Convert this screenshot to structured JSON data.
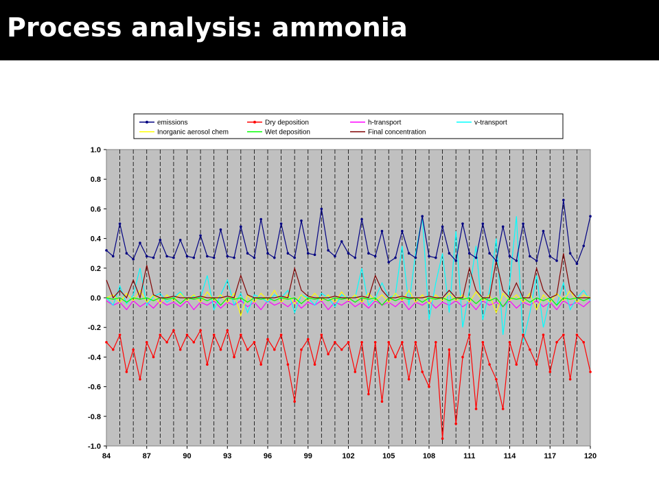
{
  "slide": {
    "title": "Process analysis: ammonia"
  },
  "chart_data": {
    "type": "line",
    "title": "",
    "xlabel": "",
    "ylabel": "",
    "xlim": [
      84,
      120
    ],
    "ylim": [
      -1.0,
      1.0
    ],
    "x_ticks": [
      "84",
      "87",
      "90",
      "93",
      "96",
      "99",
      "102",
      "105",
      "108",
      "111",
      "114",
      "117",
      "120"
    ],
    "y_ticks": [
      "1.0",
      "0.8",
      "0.6",
      "0.4",
      "0.2",
      "0.0",
      "-0.2",
      "-0.4",
      "-0.6",
      "-0.8",
      "-1.0"
    ],
    "vertical_gridlines_every": 1,
    "plot_background": "#c0c0c0",
    "legend_position": "top",
    "x": [
      84,
      84.5,
      85,
      85.5,
      86,
      86.5,
      87,
      87.5,
      88,
      88.5,
      89,
      89.5,
      90,
      90.5,
      91,
      91.5,
      92,
      92.5,
      93,
      93.5,
      94,
      94.5,
      95,
      95.5,
      96,
      96.5,
      97,
      97.5,
      98,
      98.5,
      99,
      99.5,
      100,
      100.5,
      101,
      101.5,
      102,
      102.5,
      103,
      103.5,
      104,
      104.5,
      105,
      105.5,
      106,
      106.5,
      107,
      107.5,
      108,
      108.5,
      109,
      109.5,
      110,
      110.5,
      111,
      111.5,
      112,
      112.5,
      113,
      113.5,
      114,
      114.5,
      115,
      115.5,
      116,
      116.5,
      117,
      117.5,
      118,
      118.5,
      119,
      119.5,
      120
    ],
    "series": [
      {
        "name": "emissions",
        "color": "#000080",
        "marker": true,
        "values": [
          0.32,
          0.28,
          0.5,
          0.3,
          0.26,
          0.37,
          0.28,
          0.27,
          0.39,
          0.28,
          0.27,
          0.39,
          0.28,
          0.27,
          0.42,
          0.28,
          0.27,
          0.46,
          0.28,
          0.27,
          0.48,
          0.3,
          0.27,
          0.53,
          0.3,
          0.27,
          0.5,
          0.3,
          0.27,
          0.52,
          0.3,
          0.29,
          0.6,
          0.32,
          0.28,
          0.38,
          0.3,
          0.27,
          0.53,
          0.3,
          0.28,
          0.45,
          0.24,
          0.27,
          0.45,
          0.3,
          0.27,
          0.55,
          0.28,
          0.27,
          0.48,
          0.3,
          0.25,
          0.5,
          0.3,
          0.27,
          0.5,
          0.3,
          0.25,
          0.48,
          0.28,
          0.25,
          0.5,
          0.28,
          0.25,
          0.45,
          0.28,
          0.25,
          0.66,
          0.3,
          0.23,
          0.35,
          0.55
        ]
      },
      {
        "name": "Dry deposition",
        "color": "#ff0000",
        "marker": true,
        "values": [
          -0.3,
          -0.35,
          -0.25,
          -0.5,
          -0.35,
          -0.55,
          -0.3,
          -0.4,
          -0.25,
          -0.3,
          -0.22,
          -0.35,
          -0.25,
          -0.3,
          -0.22,
          -0.45,
          -0.25,
          -0.35,
          -0.22,
          -0.4,
          -0.25,
          -0.35,
          -0.3,
          -0.45,
          -0.28,
          -0.35,
          -0.25,
          -0.45,
          -0.7,
          -0.35,
          -0.28,
          -0.45,
          -0.25,
          -0.38,
          -0.3,
          -0.35,
          -0.3,
          -0.5,
          -0.3,
          -0.65,
          -0.3,
          -0.7,
          -0.3,
          -0.4,
          -0.3,
          -0.55,
          -0.3,
          -0.5,
          -0.6,
          -0.3,
          -0.95,
          -0.35,
          -0.85,
          -0.4,
          -0.25,
          -0.75,
          -0.3,
          -0.45,
          -0.55,
          -0.75,
          -0.3,
          -0.45,
          -0.25,
          -0.35,
          -0.45,
          -0.25,
          -0.5,
          -0.3,
          -0.25,
          -0.55,
          -0.25,
          -0.3,
          -0.5
        ]
      },
      {
        "name": "h-transport",
        "color": "#ff00ff",
        "marker": false,
        "values": [
          -0.02,
          -0.05,
          -0.03,
          -0.08,
          -0.02,
          -0.06,
          -0.03,
          -0.07,
          -0.02,
          -0.05,
          -0.03,
          -0.06,
          -0.02,
          -0.08,
          -0.03,
          -0.05,
          -0.02,
          -0.07,
          -0.03,
          -0.05,
          -0.02,
          -0.06,
          -0.03,
          -0.08,
          -0.02,
          -0.05,
          -0.03,
          -0.06,
          -0.02,
          -0.07,
          -0.03,
          -0.05,
          -0.02,
          -0.08,
          -0.03,
          -0.05,
          -0.02,
          -0.06,
          -0.03,
          -0.07,
          -0.02,
          -0.05,
          -0.03,
          -0.06,
          -0.02,
          -0.08,
          -0.03,
          -0.05,
          -0.02,
          -0.07,
          -0.03,
          -0.05,
          -0.02,
          -0.06,
          -0.03,
          -0.08,
          -0.02,
          -0.05,
          -0.03,
          -0.06,
          -0.02,
          -0.07,
          -0.03,
          -0.05,
          -0.02,
          -0.06,
          -0.03,
          -0.08,
          -0.02,
          -0.05,
          -0.03,
          -0.06,
          -0.02
        ]
      },
      {
        "name": "v-transport",
        "color": "#00ffff",
        "marker": false,
        "values": [
          0.0,
          -0.05,
          0.08,
          -0.04,
          0.02,
          0.2,
          -0.05,
          0.01,
          0.03,
          -0.03,
          0.0,
          0.04,
          -0.02,
          0.01,
          0.0,
          0.15,
          -0.08,
          0.02,
          0.12,
          -0.05,
          0.03,
          -0.1,
          0.02,
          0.0,
          -0.03,
          0.02,
          0.0,
          0.05,
          -0.1,
          0.02,
          0.0,
          -0.05,
          0.03,
          0.0,
          -0.06,
          0.02,
          0.0,
          0.0,
          0.2,
          -0.05,
          0.0,
          0.1,
          0.0,
          0.02,
          0.35,
          -0.05,
          0.3,
          0.55,
          -0.15,
          0.1,
          0.3,
          -0.1,
          0.45,
          -0.2,
          0.05,
          0.35,
          -0.15,
          0.05,
          0.4,
          -0.25,
          0.1,
          0.55,
          -0.3,
          -0.1,
          0.15,
          -0.2,
          0.0,
          -0.05,
          0.1,
          -0.08,
          0.0,
          0.05,
          -0.02
        ]
      },
      {
        "name": "Inorganic aerosol chem",
        "color": "#ffff00",
        "marker": false,
        "values": [
          0.0,
          0.02,
          -0.03,
          0.03,
          -0.02,
          0.05,
          -0.03,
          0.02,
          -0.04,
          0.02,
          -0.02,
          0.03,
          -0.02,
          0.02,
          -0.03,
          0.04,
          -0.02,
          0.02,
          -0.03,
          0.03,
          -0.12,
          0.02,
          -0.03,
          0.03,
          -0.02,
          0.05,
          -0.03,
          0.02,
          -0.04,
          0.02,
          -0.02,
          0.03,
          -0.02,
          0.02,
          -0.03,
          0.04,
          -0.02,
          0.02,
          -0.03,
          0.03,
          -0.02,
          0.02,
          -0.03,
          0.03,
          -0.02,
          0.05,
          -0.03,
          0.02,
          -0.04,
          0.02,
          -0.02,
          0.03,
          -0.02,
          0.02,
          -0.03,
          0.04,
          -0.02,
          0.02,
          -0.1,
          0.03,
          -0.02,
          0.02,
          -0.03,
          0.03,
          -0.08,
          0.02,
          -0.03,
          0.03,
          -0.02,
          0.05,
          -0.03,
          0.02,
          0.0
        ]
      },
      {
        "name": "Wet deposition",
        "color": "#00ff00",
        "marker": false,
        "values": [
          0.0,
          -0.01,
          0.0,
          -0.03,
          0.0,
          -0.01,
          0.0,
          -0.02,
          0.0,
          -0.01,
          0.0,
          -0.04,
          0.0,
          -0.01,
          0.0,
          -0.02,
          0.0,
          -0.05,
          0.0,
          -0.01,
          0.0,
          -0.03,
          0.0,
          -0.01,
          0.0,
          -0.02,
          0.0,
          -0.01,
          0.0,
          -0.04,
          0.0,
          -0.01,
          0.0,
          -0.02,
          0.0,
          -0.01,
          0.0,
          -0.03,
          0.0,
          -0.01,
          0.0,
          -0.05,
          0.0,
          -0.02,
          0.0,
          -0.01,
          0.0,
          -0.03,
          0.0,
          -0.01,
          0.0,
          -0.02,
          0.0,
          -0.01,
          0.0,
          -0.04,
          0.0,
          -0.02,
          0.0,
          -0.06,
          0.0,
          -0.01,
          0.0,
          -0.03,
          0.0,
          -0.02,
          0.0,
          -0.05,
          0.0,
          -0.01,
          0.0,
          -0.02,
          0.0
        ]
      },
      {
        "name": "Final concentration",
        "color": "#800000",
        "marker": false,
        "values": [
          0.12,
          0.0,
          0.05,
          0.0,
          0.12,
          0.0,
          0.22,
          0.02,
          0.0,
          0.0,
          0.01,
          0.0,
          0.0,
          0.0,
          0.01,
          0.0,
          0.0,
          0.0,
          0.01,
          0.0,
          0.15,
          0.02,
          0.0,
          0.0,
          0.0,
          0.0,
          0.01,
          0.0,
          0.2,
          0.05,
          0.01,
          0.0,
          0.0,
          0.0,
          0.01,
          0.0,
          0.0,
          0.0,
          0.01,
          0.0,
          0.15,
          0.05,
          0.0,
          0.0,
          0.01,
          0.0,
          0.0,
          0.0,
          0.01,
          0.0,
          0.0,
          0.05,
          0.0,
          0.0,
          0.2,
          0.05,
          0.0,
          0.0,
          0.25,
          0.05,
          0.0,
          0.1,
          0.0,
          0.0,
          0.2,
          0.05,
          0.0,
          0.02,
          0.3,
          0.05,
          0.0,
          0.0,
          0.0
        ]
      }
    ]
  }
}
